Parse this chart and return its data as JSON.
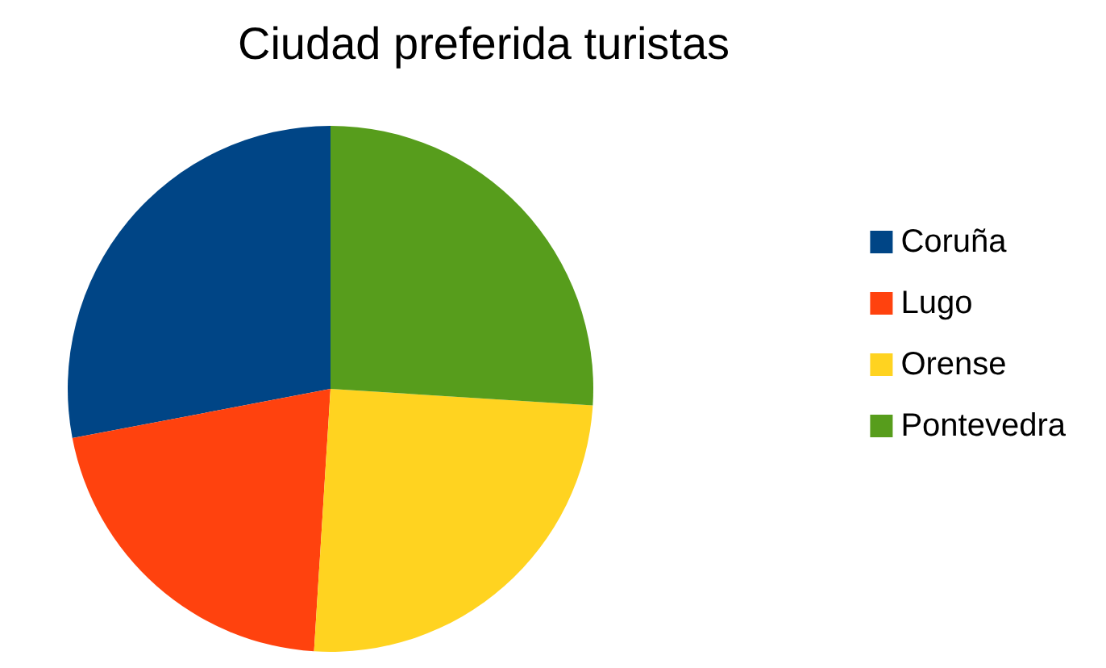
{
  "chart_data": {
    "type": "pie",
    "title": "Ciudad preferida turistas",
    "categories": [
      "Coruña",
      "Lugo",
      "Orense",
      "Pontevedra"
    ],
    "values": [
      28,
      21,
      25,
      26
    ],
    "colors": [
      "#004586",
      "#ff420e",
      "#ffd320",
      "#579d1c"
    ],
    "legend": "right"
  }
}
